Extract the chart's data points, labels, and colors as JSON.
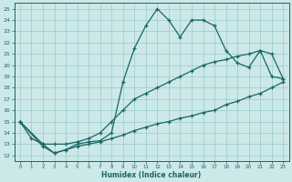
{
  "xlabel": "Humidex (Indice chaleur)",
  "bg_color": "#cce8e8",
  "grid_color": "#99cccc",
  "line_color": "#1a6666",
  "xlim": [
    -0.5,
    23.5
  ],
  "ylim": [
    11.5,
    25.5
  ],
  "xticks": [
    0,
    1,
    2,
    3,
    4,
    5,
    6,
    7,
    8,
    9,
    10,
    11,
    12,
    13,
    14,
    15,
    16,
    17,
    18,
    19,
    20,
    21,
    22,
    23
  ],
  "yticks": [
    12,
    13,
    14,
    15,
    16,
    17,
    18,
    19,
    20,
    21,
    22,
    23,
    24,
    25
  ],
  "line1_x": [
    0,
    1,
    2,
    3,
    4,
    5,
    6,
    7,
    8,
    9,
    10,
    11,
    12,
    13,
    14,
    15,
    16,
    17,
    18,
    19,
    20,
    21,
    22,
    23
  ],
  "line1_y": [
    15.0,
    13.5,
    13.0,
    12.2,
    12.5,
    13.0,
    13.2,
    13.3,
    14.0,
    18.5,
    21.5,
    23.5,
    25.0,
    24.0,
    22.5,
    24.0,
    24.0,
    23.5,
    21.3,
    20.2,
    19.8,
    21.3,
    19.0,
    18.8
  ],
  "line2_x": [
    0,
    2,
    3,
    4,
    5,
    6,
    7,
    8,
    9,
    10,
    11,
    12,
    13,
    14,
    15,
    16,
    17,
    18,
    19,
    20,
    21,
    22,
    23
  ],
  "line2_y": [
    15.0,
    13.0,
    13.0,
    13.0,
    13.2,
    13.5,
    14.0,
    15.0,
    16.0,
    17.0,
    17.5,
    18.0,
    18.5,
    19.0,
    19.5,
    20.0,
    20.3,
    20.5,
    20.8,
    21.0,
    21.3,
    21.0,
    18.8
  ],
  "line3_x": [
    0,
    2,
    3,
    4,
    5,
    6,
    7,
    8,
    9,
    10,
    11,
    12,
    13,
    14,
    15,
    16,
    17,
    18,
    19,
    20,
    21,
    22,
    23
  ],
  "line3_y": [
    15.0,
    12.8,
    12.2,
    12.5,
    12.8,
    13.0,
    13.2,
    13.5,
    13.8,
    14.2,
    14.5,
    14.8,
    15.0,
    15.3,
    15.5,
    15.8,
    16.0,
    16.5,
    16.8,
    17.2,
    17.5,
    18.0,
    18.5
  ]
}
